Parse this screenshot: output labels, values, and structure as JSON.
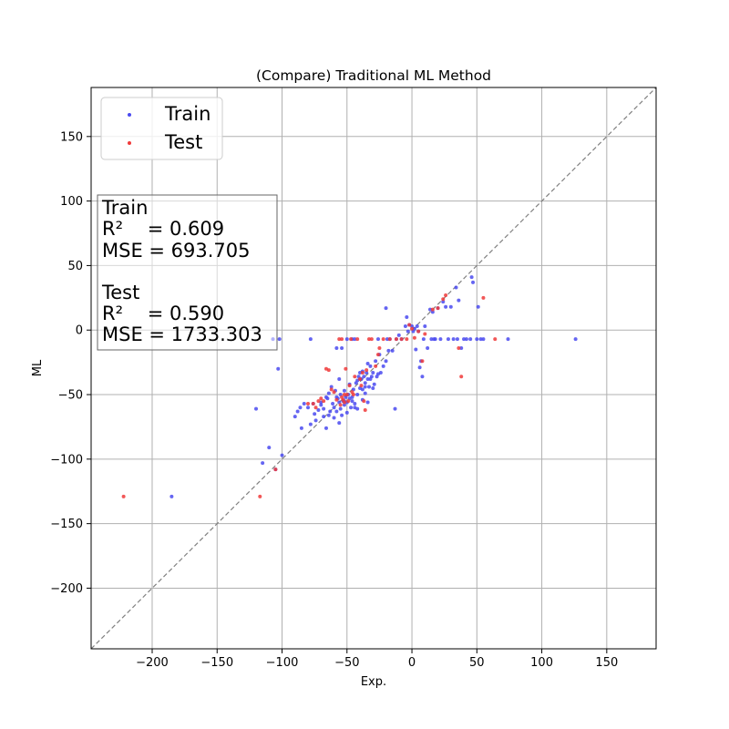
{
  "chart_data": {
    "type": "scatter",
    "title": "(Compare) Traditional ML Method",
    "xlabel": "Exp.",
    "ylabel": "ML",
    "xlim": [
      -247,
      188
    ],
    "ylim": [
      -247,
      188
    ],
    "xticks": [
      -200,
      -150,
      -100,
      -50,
      0,
      50,
      100,
      150
    ],
    "yticks": [
      -200,
      -150,
      -100,
      -50,
      0,
      50,
      100,
      150
    ],
    "xtick_labels": [
      "−200",
      "−150",
      "−100",
      "−50",
      "0",
      "50",
      "100",
      "150"
    ],
    "ytick_labels": [
      "−200",
      "−150",
      "−100",
      "−50",
      "0",
      "50",
      "100",
      "150"
    ],
    "grid": true,
    "reference_line": "y = x",
    "legend_position": "upper-left",
    "colors": {
      "train": "#4a4af0",
      "test": "#f03a3a",
      "grid": "#b0b0b0",
      "diagonal": "#808080"
    },
    "series": [
      {
        "name": "Train",
        "color": "#4a4af0",
        "points": [
          [
            -185,
            -129
          ],
          [
            -120,
            -61
          ],
          [
            -115,
            -103
          ],
          [
            -110,
            -91
          ],
          [
            -105,
            -108
          ],
          [
            -100,
            -97
          ],
          [
            -103,
            -30
          ],
          [
            -107,
            -7
          ],
          [
            -102,
            -7
          ],
          [
            -90,
            -67
          ],
          [
            -88,
            -63
          ],
          [
            -86,
            -60
          ],
          [
            -85,
            -76
          ],
          [
            -83,
            -57
          ],
          [
            -80,
            -60
          ],
          [
            -78,
            -73
          ],
          [
            -76,
            -57
          ],
          [
            -75,
            -65
          ],
          [
            -72,
            -62
          ],
          [
            -70,
            -58
          ],
          [
            -68,
            -67
          ],
          [
            -66,
            -76
          ],
          [
            -65,
            -53
          ],
          [
            -64,
            -49
          ],
          [
            -63,
            -63
          ],
          [
            -61,
            -57
          ],
          [
            -60,
            -60
          ],
          [
            -59,
            -47
          ],
          [
            -58,
            -63
          ],
          [
            -57,
            -53
          ],
          [
            -56,
            -56
          ],
          [
            -55,
            -61
          ],
          [
            -55,
            -50
          ],
          [
            -54,
            -66
          ],
          [
            -53,
            -55
          ],
          [
            -52,
            -58
          ],
          [
            -51,
            -52
          ],
          [
            -50,
            -56
          ],
          [
            -49,
            -50
          ],
          [
            -48,
            -53
          ],
          [
            -47,
            -60
          ],
          [
            -46,
            -55
          ],
          [
            -45,
            -46
          ],
          [
            -44,
            -57
          ],
          [
            -43,
            -41
          ],
          [
            -42,
            -50
          ],
          [
            -41,
            -36
          ],
          [
            -40,
            -45
          ],
          [
            -39,
            -38
          ],
          [
            -38,
            -54
          ],
          [
            -37,
            -36
          ],
          [
            -36,
            -41
          ],
          [
            -35,
            -33
          ],
          [
            -34,
            -56
          ],
          [
            -33,
            -44
          ],
          [
            -32,
            -28
          ],
          [
            -31,
            -36
          ],
          [
            -30,
            -33
          ],
          [
            -29,
            -42
          ],
          [
            -28,
            -24
          ],
          [
            -27,
            -36
          ],
          [
            -26,
            -7
          ],
          [
            -25,
            -19
          ],
          [
            -24,
            -33
          ],
          [
            -22,
            -28
          ],
          [
            -20,
            -24
          ],
          [
            -19,
            -7
          ],
          [
            -18,
            -16
          ],
          [
            -17,
            -7
          ],
          [
            -15,
            -16
          ],
          [
            -13,
            -61
          ],
          [
            -12,
            -7
          ],
          [
            -10,
            -4
          ],
          [
            -8,
            -7
          ],
          [
            -5,
            3
          ],
          [
            -4,
            10
          ],
          [
            -3,
            -1
          ],
          [
            -2,
            4
          ],
          [
            0,
            3
          ],
          [
            1,
            -1
          ],
          [
            2,
            1
          ],
          [
            3,
            -15
          ],
          [
            4,
            3
          ],
          [
            5,
            -1
          ],
          [
            6,
            -29
          ],
          [
            7,
            -24
          ],
          [
            8,
            -36
          ],
          [
            9,
            -7
          ],
          [
            10,
            3
          ],
          [
            12,
            -14
          ],
          [
            14,
            16
          ],
          [
            15,
            -7
          ],
          [
            16,
            14
          ],
          [
            17,
            -7
          ],
          [
            18,
            -7
          ],
          [
            20,
            17
          ],
          [
            22,
            -7
          ],
          [
            24,
            22
          ],
          [
            26,
            18
          ],
          [
            28,
            -7
          ],
          [
            30,
            18
          ],
          [
            32,
            -7
          ],
          [
            34,
            33
          ],
          [
            35,
            -7
          ],
          [
            36,
            23
          ],
          [
            38,
            -14
          ],
          [
            40,
            -7
          ],
          [
            42,
            -7
          ],
          [
            45,
            -7
          ],
          [
            46,
            41
          ],
          [
            47,
            37
          ],
          [
            50,
            -7
          ],
          [
            51,
            18
          ],
          [
            53,
            -7
          ],
          [
            55,
            -7
          ],
          [
            74,
            -7
          ],
          [
            126,
            -7
          ],
          [
            -78,
            -7
          ],
          [
            -70,
            -56
          ],
          [
            -62,
            -44
          ],
          [
            -56,
            -38
          ],
          [
            -58,
            -14
          ],
          [
            -54,
            -14
          ],
          [
            -50,
            -7
          ],
          [
            -46,
            -7
          ],
          [
            -44,
            -7
          ],
          [
            -48,
            -42
          ],
          [
            -42,
            -61
          ],
          [
            -36,
            -49
          ],
          [
            -30,
            -45
          ],
          [
            -52,
            -47
          ],
          [
            -40,
            -33
          ],
          [
            -38,
            -46
          ],
          [
            -34,
            -38
          ],
          [
            -32,
            -38
          ],
          [
            -20,
            17
          ],
          [
            -26,
            -34
          ],
          [
            -68,
            -61
          ],
          [
            -74,
            -70
          ],
          [
            -60,
            -68
          ],
          [
            -56,
            -72
          ],
          [
            -50,
            -64
          ],
          [
            -44,
            -60
          ],
          [
            -66,
            -52
          ],
          [
            -64,
            -66
          ],
          [
            -58,
            -52
          ],
          [
            -52,
            -55
          ],
          [
            -46,
            -52
          ],
          [
            -42,
            -39
          ],
          [
            -40,
            -38
          ],
          [
            -38,
            -32
          ],
          [
            -36,
            -44
          ],
          [
            -34,
            -26
          ]
        ]
      },
      {
        "name": "Test",
        "color": "#f03a3a",
        "points": [
          [
            -222,
            -129
          ],
          [
            -117,
            -129
          ],
          [
            -105,
            -108
          ],
          [
            -80,
            -57
          ],
          [
            -76,
            -57
          ],
          [
            -74,
            -60
          ],
          [
            -72,
            -55
          ],
          [
            -70,
            -53
          ],
          [
            -68,
            -55
          ],
          [
            -66,
            -30
          ],
          [
            -64,
            -31
          ],
          [
            -62,
            -46
          ],
          [
            -60,
            -48
          ],
          [
            -58,
            -54
          ],
          [
            -56,
            -7
          ],
          [
            -55,
            -58
          ],
          [
            -54,
            -7
          ],
          [
            -53,
            -54
          ],
          [
            -52,
            -50
          ],
          [
            -51,
            -30
          ],
          [
            -50,
            -50
          ],
          [
            -49,
            -55
          ],
          [
            -48,
            -43
          ],
          [
            -47,
            -7
          ],
          [
            -46,
            -48
          ],
          [
            -45,
            -50
          ],
          [
            -44,
            -36
          ],
          [
            -42,
            -7
          ],
          [
            -40,
            -38
          ],
          [
            -39,
            -43
          ],
          [
            -38,
            -33
          ],
          [
            -37,
            -55
          ],
          [
            -36,
            -62
          ],
          [
            -35,
            -31
          ],
          [
            -33,
            -7
          ],
          [
            -31,
            -7
          ],
          [
            -28,
            -28
          ],
          [
            -26,
            -19
          ],
          [
            -25,
            -14
          ],
          [
            -22,
            -7
          ],
          [
            -17,
            -7
          ],
          [
            -12,
            -7
          ],
          [
            -8,
            -7
          ],
          [
            -4,
            -7
          ],
          [
            -2,
            4
          ],
          [
            0,
            1
          ],
          [
            2,
            -6
          ],
          [
            5,
            -1
          ],
          [
            8,
            -24
          ],
          [
            10,
            -3
          ],
          [
            16,
            16
          ],
          [
            20,
            17
          ],
          [
            24,
            24
          ],
          [
            26,
            27
          ],
          [
            36,
            -14
          ],
          [
            38,
            -36
          ],
          [
            55,
            25
          ],
          [
            64,
            -7
          ],
          [
            -52,
            -56
          ],
          [
            -54,
            -52
          ]
        ]
      }
    ],
    "legend": [
      {
        "label": "Train",
        "color": "#4a4af0"
      },
      {
        "label": "Test",
        "color": "#f03a3a"
      }
    ],
    "annotation_lines": [
      "Train",
      "R²    = 0.609",
      "MSE = 693.705",
      "",
      "Test",
      "R²    = 0.590",
      "MSE = 1733.303"
    ]
  }
}
